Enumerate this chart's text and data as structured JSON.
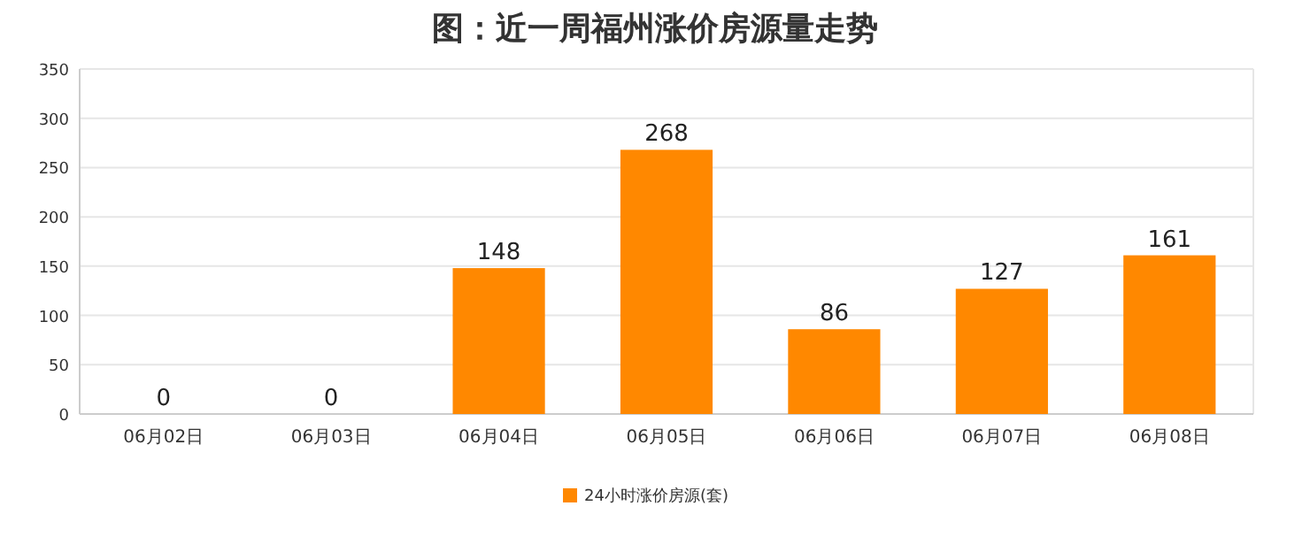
{
  "chart_data": {
    "type": "bar",
    "title": "图：近一周福州涨价房源量走势",
    "categories": [
      "06月02日",
      "06月03日",
      "06月04日",
      "06月05日",
      "06月06日",
      "06月07日",
      "06月08日"
    ],
    "series": [
      {
        "name": "24小时涨价房源(套)",
        "color": "#ff8800",
        "values": [
          0,
          0,
          148,
          268,
          86,
          127,
          161
        ]
      }
    ],
    "ylim": [
      0,
      350
    ],
    "yticks": [
      0,
      50,
      100,
      150,
      200,
      250,
      300,
      350
    ],
    "grid": "y",
    "legend": "bottom",
    "data_labels": true
  }
}
